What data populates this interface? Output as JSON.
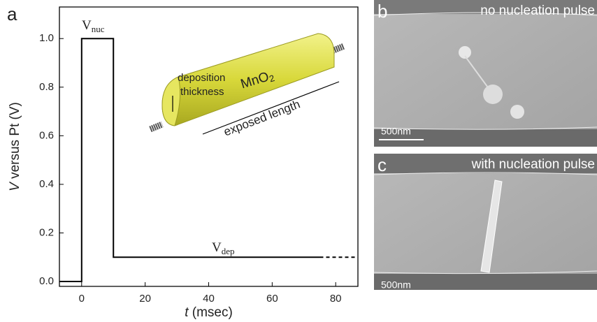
{
  "chart_data": {
    "type": "line",
    "label": "a",
    "x_label": [
      "t",
      " (msec)"
    ],
    "y_label": [
      "V",
      " versus Pt (V)"
    ],
    "xlim": [
      -7,
      87
    ],
    "ylim": [
      -0.02,
      1.13
    ],
    "xticks": [
      0,
      20,
      40,
      60,
      80
    ],
    "yticks": [
      {
        "value": 0,
        "label": "0.0"
      },
      0.2,
      0.4,
      0.6,
      0.8,
      {
        "value": 1,
        "label": "1.0"
      }
    ],
    "series": [
      {
        "color": "#000000",
        "style": "solid",
        "x": [
          -7,
          0,
          0,
          10,
          10,
          75
        ],
        "values": [
          0,
          0,
          1,
          1,
          0.1,
          0.1
        ]
      },
      {
        "color": "#000000",
        "style": "dashed",
        "x": [
          75,
          87
        ],
        "values": [
          0.1,
          0.1
        ]
      }
    ],
    "annotations": [
      {
        "text": "V",
        "sub": "nuc"
      },
      {
        "text": "V",
        "sub": "dep"
      }
    ],
    "inset": {
      "thickness": [
        "deposition",
        "thickness"
      ],
      "material": [
        "MnO",
        "2"
      ],
      "length": "exposed length"
    }
  },
  "panels": [
    {
      "label": "b",
      "caption": "no nucleation pulse",
      "scale_bar": "500nm"
    },
    {
      "label": "c",
      "caption": "with nucleation pulse",
      "scale_bar": "500nm"
    }
  ]
}
